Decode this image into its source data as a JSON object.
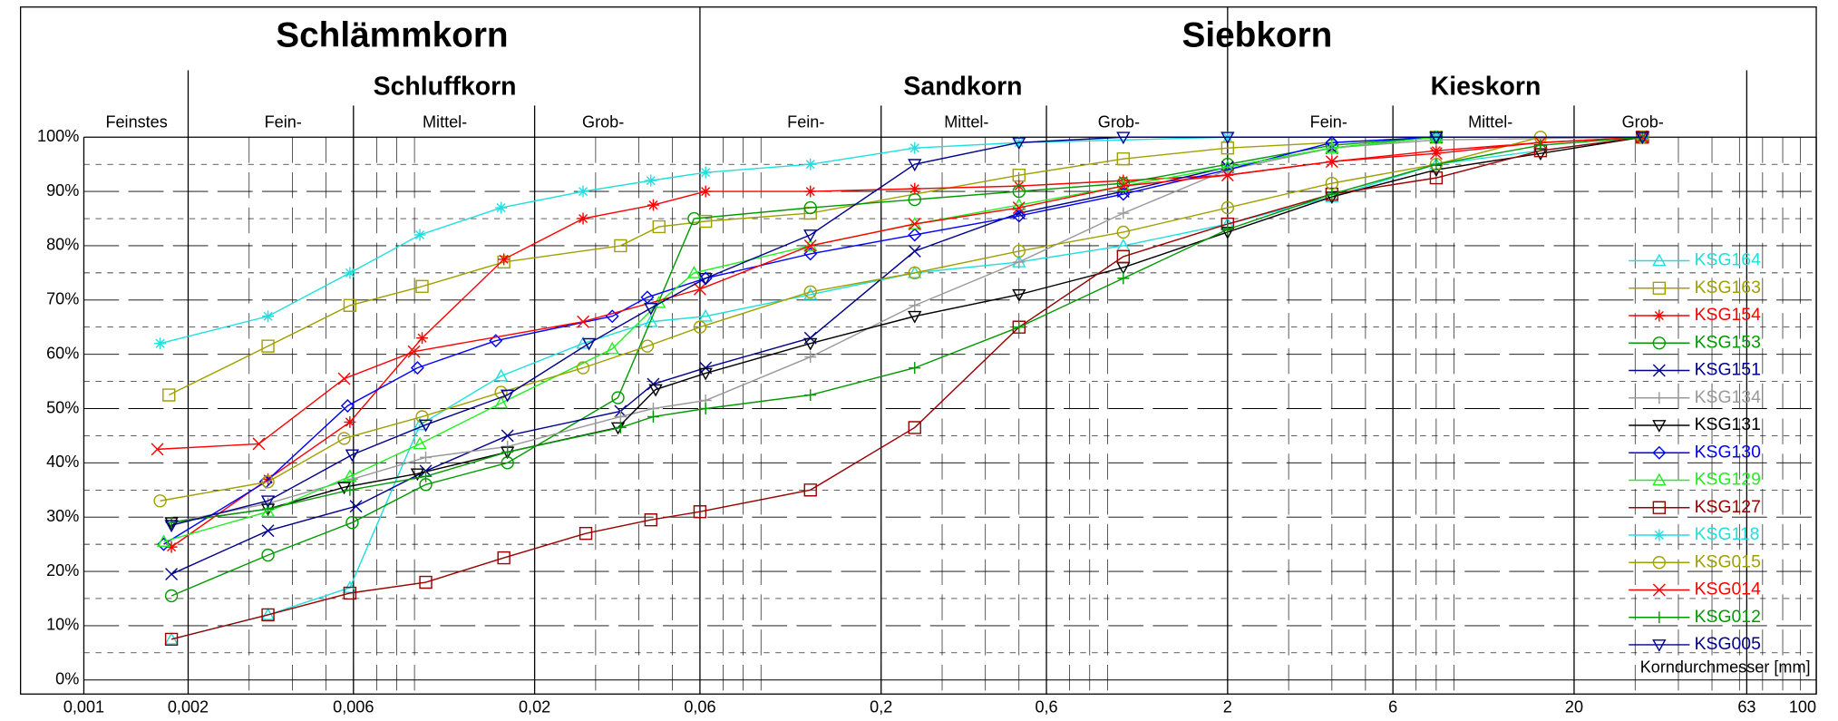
{
  "chart_data": {
    "type": "line",
    "xscale": "log",
    "legend": "lower right",
    "grid": true,
    "header": {
      "row1": [
        "Schlämmkorn",
        "Siebkorn"
      ],
      "row2": [
        "Schluffkorn",
        "Sandkorn",
        "Kieskorn"
      ],
      "row3": [
        "Feinstes",
        "Fein-",
        "Mittel-",
        "Grob-",
        "Fein-",
        "Mittel-",
        "Grob-",
        "Fein-",
        "Mittel-",
        "Grob-"
      ]
    },
    "xlabel": "Korndurchmesser [mm]",
    "xlim": [
      0.001,
      100
    ],
    "xticks": [
      {
        "value": 0.001,
        "label": "0,001"
      },
      {
        "value": 0.002,
        "label": "0,002"
      },
      {
        "value": 0.006,
        "label": "0,006"
      },
      {
        "value": 0.02,
        "label": "0,02"
      },
      {
        "value": 0.06,
        "label": "0,06"
      },
      {
        "value": 0.2,
        "label": "0,2"
      },
      {
        "value": 0.6,
        "label": "0,6"
      },
      2,
      6,
      20,
      63,
      100
    ],
    "ylim": [
      0,
      100
    ],
    "yticks": [
      {
        "value": 0,
        "label": "0%"
      },
      {
        "value": 10,
        "label": "10%"
      },
      {
        "value": 20,
        "label": "20%"
      },
      {
        "value": 30,
        "label": "30%"
      },
      {
        "value": 40,
        "label": "40%"
      },
      {
        "value": 50,
        "label": "50%"
      },
      {
        "value": 60,
        "label": "60%"
      },
      {
        "value": 70,
        "label": "70%"
      },
      {
        "value": 80,
        "label": "80%"
      },
      {
        "value": 90,
        "label": "90%"
      },
      {
        "value": 100,
        "label": "100%"
      }
    ],
    "series": [
      {
        "name": "KSG164",
        "color": "#22dede",
        "marker": "triangle-up",
        "x": [
          0.00179,
          0.0034,
          0.00586,
          0.00933,
          0.016,
          0.0276,
          0.0433,
          0.0623,
          0.125,
          0.25,
          0.5,
          1,
          2,
          4,
          8,
          31.5
        ],
        "values": [
          7.5,
          12,
          17,
          47,
          56,
          62,
          66,
          67,
          71,
          75,
          77,
          80,
          84,
          89,
          95,
          100
        ]
      },
      {
        "name": "KSG163",
        "color": "#a0a000",
        "marker": "square",
        "x": [
          0.00176,
          0.0034,
          0.00586,
          0.00947,
          0.0163,
          0.0354,
          0.0457,
          0.0623,
          0.125,
          0.5,
          1,
          2,
          8,
          31.5
        ],
        "values": [
          52.5,
          61.5,
          69,
          72.5,
          77,
          80,
          83.5,
          84.5,
          86,
          93,
          96,
          98,
          100,
          100
        ]
      },
      {
        "name": "KSG154",
        "color": "#ff0000",
        "marker": "asterisk",
        "x": [
          0.00179,
          0.0034,
          0.00586,
          0.00947,
          0.0163,
          0.0276,
          0.044,
          0.0623,
          0.125,
          0.25,
          0.5,
          1,
          2,
          4,
          8,
          16,
          31.5
        ],
        "values": [
          24.5,
          37,
          47.5,
          63,
          77.5,
          85,
          87.5,
          90,
          90,
          90.5,
          91,
          92,
          93,
          95.5,
          97.5,
          99,
          100
        ]
      },
      {
        "name": "KSG153",
        "color": "#009900",
        "marker": "circle",
        "x": [
          0.00179,
          0.0034,
          0.00595,
          0.0097,
          0.0167,
          0.0348,
          0.0577,
          0.125,
          0.25,
          0.5,
          1,
          2,
          4,
          8,
          31.5
        ],
        "values": [
          15.5,
          23,
          29,
          36,
          40,
          52,
          85,
          87,
          88.5,
          90,
          91.5,
          95,
          98.5,
          100,
          100
        ]
      },
      {
        "name": "KSG151",
        "color": "#00008c",
        "marker": "x",
        "x": [
          0.00179,
          0.0034,
          0.0061,
          0.0097,
          0.0167,
          0.0354,
          0.044,
          0.0623,
          0.125,
          0.25,
          0.5,
          1,
          2,
          4,
          8,
          31.5
        ],
        "values": [
          19.5,
          27.5,
          32,
          38.5,
          45,
          49.5,
          54.5,
          57.5,
          63,
          79,
          86,
          90,
          94.5,
          98,
          100,
          100
        ]
      },
      {
        "name": "KSG134",
        "color": "#999999",
        "marker": "plus",
        "x": [
          0.00179,
          0.0034,
          0.00595,
          0.0097,
          0.0167,
          0.0354,
          0.044,
          0.0623,
          0.125,
          0.25,
          0.5,
          1,
          2,
          4,
          8,
          31.5
        ],
        "values": [
          29,
          32.5,
          37,
          41,
          43,
          48.5,
          50,
          51.5,
          59.5,
          69,
          77,
          86,
          94,
          98,
          99.5,
          100
        ]
      },
      {
        "name": "KSG131",
        "color": "#000000",
        "marker": "triangle-down",
        "x": [
          0.00179,
          0.0034,
          0.00564,
          0.00918,
          0.0167,
          0.0348,
          0.0447,
          0.0623,
          0.125,
          0.25,
          0.5,
          1,
          2,
          4,
          8,
          16,
          31.5
        ],
        "values": [
          29,
          31.5,
          35.5,
          38,
          42,
          46.5,
          53.5,
          56.5,
          62,
          67,
          71,
          76,
          82.5,
          89,
          94,
          97,
          100
        ]
      },
      {
        "name": "KSG130",
        "color": "#0000ff",
        "marker": "diamond",
        "x": [
          0.0017,
          0.00335,
          0.00577,
          0.00918,
          0.01545,
          0.0335,
          0.0423,
          0.0623,
          0.125,
          0.25,
          0.5,
          1,
          2,
          4,
          8,
          31.5
        ],
        "values": [
          25,
          36.5,
          50.5,
          57.5,
          62.5,
          67,
          70.5,
          74,
          78.5,
          82,
          85.5,
          89.5,
          94,
          99,
          100,
          100
        ]
      },
      {
        "name": "KSG129",
        "color": "#22ee22",
        "marker": "triangle-up",
        "x": [
          0.0017,
          0.0034,
          0.00586,
          0.00933,
          0.016,
          0.0335,
          0.0457,
          0.0577,
          0.125,
          0.25,
          0.5,
          1,
          2,
          4,
          8,
          31.5
        ],
        "values": [
          25.5,
          31,
          37.5,
          43.5,
          51,
          61,
          69.5,
          75,
          80,
          84,
          87.5,
          91,
          94.5,
          98,
          100,
          100
        ]
      },
      {
        "name": "KSG127",
        "color": "#990000",
        "marker": "square",
        "x": [
          0.00179,
          0.0034,
          0.00586,
          0.0097,
          0.0163,
          0.0281,
          0.0433,
          0.06,
          0.125,
          0.25,
          0.5,
          1,
          2,
          4,
          8,
          16,
          31.5
        ],
        "values": [
          7.5,
          12,
          16,
          18,
          22.5,
          27,
          29.5,
          31,
          35,
          46.5,
          65,
          78,
          84,
          89.5,
          92.5,
          97.5,
          100
        ]
      },
      {
        "name": "KSG118",
        "color": "#22dede",
        "marker": "asterisk",
        "x": [
          0.00166,
          0.0034,
          0.00586,
          0.00933,
          0.016,
          0.0276,
          0.0433,
          0.0623,
          0.125,
          0.25,
          0.5,
          2,
          8,
          31.5
        ],
        "values": [
          62,
          67,
          75,
          82,
          87,
          90,
          92,
          93.5,
          95,
          98,
          99,
          100,
          100,
          100
        ]
      },
      {
        "name": "KSG015",
        "color": "#a0a000",
        "marker": "circle",
        "x": [
          0.00166,
          0.0034,
          0.00564,
          0.00947,
          0.016,
          0.0276,
          0.0423,
          0.06,
          0.125,
          0.25,
          0.5,
          1,
          2,
          4,
          8,
          16,
          31.5
        ],
        "values": [
          33,
          36.5,
          44.5,
          48.5,
          53,
          57.5,
          61.5,
          65,
          71.5,
          75,
          79,
          82.5,
          87,
          91.5,
          95,
          100,
          100
        ]
      },
      {
        "name": "KSG014",
        "color": "#ff0000",
        "marker": "x",
        "x": [
          0.00163,
          0.0032,
          0.00564,
          0.00897,
          0.0276,
          0.06,
          0.125,
          0.25,
          0.5,
          1,
          2,
          4,
          8,
          16,
          31.5
        ],
        "values": [
          42.5,
          43.5,
          55.5,
          60.5,
          66,
          72,
          80,
          84,
          87,
          91,
          93,
          95.5,
          97,
          99,
          100
        ]
      },
      {
        "name": "KSG012",
        "color": "#009900",
        "marker": "plus",
        "x": [
          0.00179,
          0.0034,
          0.00586,
          0.0097,
          0.0167,
          0.0354,
          0.044,
          0.0623,
          0.125,
          0.25,
          0.5,
          1,
          2,
          4,
          8,
          16,
          31.5
        ],
        "values": [
          29,
          31.5,
          35,
          37.5,
          42,
          46.5,
          48.5,
          50,
          52.5,
          57.5,
          65,
          74,
          83,
          89.5,
          95,
          98.5,
          100
        ]
      },
      {
        "name": "KSG005",
        "color": "#00008c",
        "marker": "triangle-down",
        "x": [
          0.00179,
          0.0034,
          0.00595,
          0.0097,
          0.0167,
          0.0287,
          0.0433,
          0.0623,
          0.125,
          0.25,
          0.5,
          1,
          2,
          8,
          31.5
        ],
        "values": [
          28.5,
          33,
          41.5,
          47,
          52.5,
          62,
          68.5,
          74,
          82,
          95,
          99,
          100,
          100,
          100,
          100
        ]
      }
    ]
  }
}
